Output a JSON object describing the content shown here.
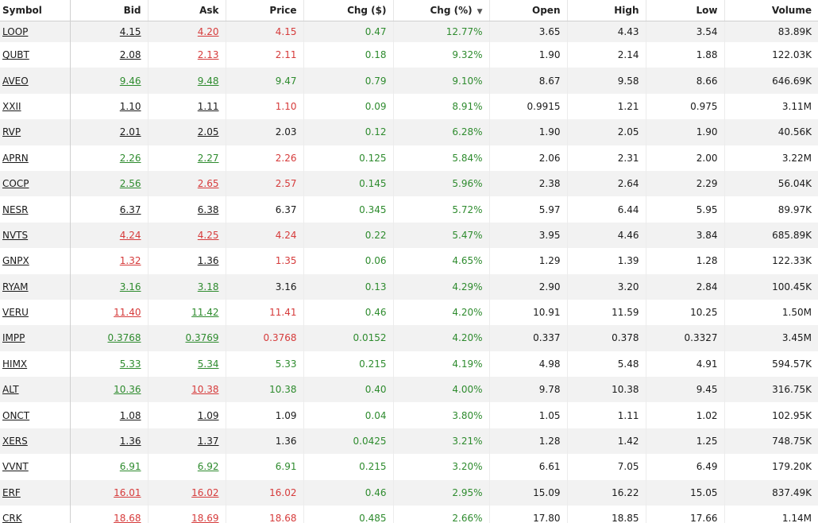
{
  "table": {
    "headers": {
      "symbol": "Symbol",
      "bid": "Bid",
      "ask": "Ask",
      "price": "Price",
      "chg_abs": "Chg ($)",
      "chg_pct": "Chg (%)",
      "open": "Open",
      "high": "High",
      "low": "Low",
      "volume": "Volume"
    },
    "sort_icon": "caret-down-icon",
    "colors": {
      "up": "#2e8b2e",
      "down": "#d63b3b",
      "neutral": "#1a1a1a"
    },
    "rows": [
      {
        "symbol": "LOOP",
        "bid": "4.15",
        "bid_c": "k",
        "ask": "4.20",
        "ask_c": "r",
        "price": "4.15",
        "price_c": "r",
        "chg": "0.47",
        "pct": "12.77%",
        "open": "3.65",
        "high": "4.43",
        "low": "3.54",
        "volume": "83.89K"
      },
      {
        "symbol": "QUBT",
        "bid": "2.08",
        "bid_c": "k",
        "ask": "2.13",
        "ask_c": "r",
        "price": "2.11",
        "price_c": "r",
        "chg": "0.18",
        "pct": "9.32%",
        "open": "1.90",
        "high": "2.14",
        "low": "1.88",
        "volume": "122.03K"
      },
      {
        "symbol": "AVEO",
        "bid": "9.46",
        "bid_c": "g",
        "ask": "9.48",
        "ask_c": "g",
        "price": "9.47",
        "price_c": "g",
        "chg": "0.79",
        "pct": "9.10%",
        "open": "8.67",
        "high": "9.58",
        "low": "8.66",
        "volume": "646.69K"
      },
      {
        "symbol": "XXII",
        "bid": "1.10",
        "bid_c": "k",
        "ask": "1.11",
        "ask_c": "k",
        "price": "1.10",
        "price_c": "r",
        "chg": "0.09",
        "pct": "8.91%",
        "open": "0.9915",
        "high": "1.21",
        "low": "0.975",
        "volume": "3.11M"
      },
      {
        "symbol": "RVP",
        "bid": "2.01",
        "bid_c": "k",
        "ask": "2.05",
        "ask_c": "k",
        "price": "2.03",
        "price_c": "k",
        "chg": "0.12",
        "pct": "6.28%",
        "open": "1.90",
        "high": "2.05",
        "low": "1.90",
        "volume": "40.56K"
      },
      {
        "symbol": "APRN",
        "bid": "2.26",
        "bid_c": "g",
        "ask": "2.27",
        "ask_c": "g",
        "price": "2.26",
        "price_c": "r",
        "chg": "0.125",
        "pct": "5.84%",
        "open": "2.06",
        "high": "2.31",
        "low": "2.00",
        "volume": "3.22M"
      },
      {
        "symbol": "COCP",
        "bid": "2.56",
        "bid_c": "g",
        "ask": "2.65",
        "ask_c": "r",
        "price": "2.57",
        "price_c": "r",
        "chg": "0.145",
        "pct": "5.96%",
        "open": "2.38",
        "high": "2.64",
        "low": "2.29",
        "volume": "56.04K"
      },
      {
        "symbol": "NESR",
        "bid": "6.37",
        "bid_c": "k",
        "ask": "6.38",
        "ask_c": "k",
        "price": "6.37",
        "price_c": "k",
        "chg": "0.345",
        "pct": "5.72%",
        "open": "5.97",
        "high": "6.44",
        "low": "5.95",
        "volume": "89.97K"
      },
      {
        "symbol": "NVTS",
        "bid": "4.24",
        "bid_c": "r",
        "ask": "4.25",
        "ask_c": "r",
        "price": "4.24",
        "price_c": "r",
        "chg": "0.22",
        "pct": "5.47%",
        "open": "3.95",
        "high": "4.46",
        "low": "3.84",
        "volume": "685.89K"
      },
      {
        "symbol": "GNPX",
        "bid": "1.32",
        "bid_c": "r",
        "ask": "1.36",
        "ask_c": "k",
        "price": "1.35",
        "price_c": "r",
        "chg": "0.06",
        "pct": "4.65%",
        "open": "1.29",
        "high": "1.39",
        "low": "1.28",
        "volume": "122.33K"
      },
      {
        "symbol": "RYAM",
        "bid": "3.16",
        "bid_c": "g",
        "ask": "3.18",
        "ask_c": "g",
        "price": "3.16",
        "price_c": "k",
        "chg": "0.13",
        "pct": "4.29%",
        "open": "2.90",
        "high": "3.20",
        "low": "2.84",
        "volume": "100.45K"
      },
      {
        "symbol": "VERU",
        "bid": "11.40",
        "bid_c": "r",
        "ask": "11.42",
        "ask_c": "g",
        "price": "11.41",
        "price_c": "r",
        "chg": "0.46",
        "pct": "4.20%",
        "open": "10.91",
        "high": "11.59",
        "low": "10.25",
        "volume": "1.50M"
      },
      {
        "symbol": "IMPP",
        "bid": "0.3768",
        "bid_c": "g",
        "ask": "0.3769",
        "ask_c": "g",
        "price": "0.3768",
        "price_c": "r",
        "chg": "0.0152",
        "pct": "4.20%",
        "open": "0.337",
        "high": "0.378",
        "low": "0.3327",
        "volume": "3.45M"
      },
      {
        "symbol": "HIMX",
        "bid": "5.33",
        "bid_c": "g",
        "ask": "5.34",
        "ask_c": "g",
        "price": "5.33",
        "price_c": "g",
        "chg": "0.215",
        "pct": "4.19%",
        "open": "4.98",
        "high": "5.48",
        "low": "4.91",
        "volume": "594.57K"
      },
      {
        "symbol": "ALT",
        "bid": "10.36",
        "bid_c": "g",
        "ask": "10.38",
        "ask_c": "r",
        "price": "10.38",
        "price_c": "g",
        "chg": "0.40",
        "pct": "4.00%",
        "open": "9.78",
        "high": "10.38",
        "low": "9.45",
        "volume": "316.75K"
      },
      {
        "symbol": "ONCT",
        "bid": "1.08",
        "bid_c": "k",
        "ask": "1.09",
        "ask_c": "k",
        "price": "1.09",
        "price_c": "k",
        "chg": "0.04",
        "pct": "3.80%",
        "open": "1.05",
        "high": "1.11",
        "low": "1.02",
        "volume": "102.95K"
      },
      {
        "symbol": "XERS",
        "bid": "1.36",
        "bid_c": "k",
        "ask": "1.37",
        "ask_c": "k",
        "price": "1.36",
        "price_c": "k",
        "chg": "0.0425",
        "pct": "3.21%",
        "open": "1.28",
        "high": "1.42",
        "low": "1.25",
        "volume": "748.75K"
      },
      {
        "symbol": "VVNT",
        "bid": "6.91",
        "bid_c": "g",
        "ask": "6.92",
        "ask_c": "g",
        "price": "6.91",
        "price_c": "g",
        "chg": "0.215",
        "pct": "3.20%",
        "open": "6.61",
        "high": "7.05",
        "low": "6.49",
        "volume": "179.20K"
      },
      {
        "symbol": "ERF",
        "bid": "16.01",
        "bid_c": "r",
        "ask": "16.02",
        "ask_c": "r",
        "price": "16.02",
        "price_c": "r",
        "chg": "0.46",
        "pct": "2.95%",
        "open": "15.09",
        "high": "16.22",
        "low": "15.05",
        "volume": "837.49K"
      },
      {
        "symbol": "CRK",
        "bid": "18.68",
        "bid_c": "r",
        "ask": "18.69",
        "ask_c": "r",
        "price": "18.68",
        "price_c": "r",
        "chg": "0.485",
        "pct": "2.66%",
        "open": "17.80",
        "high": "18.85",
        "low": "17.66",
        "volume": "1.14M"
      }
    ]
  }
}
